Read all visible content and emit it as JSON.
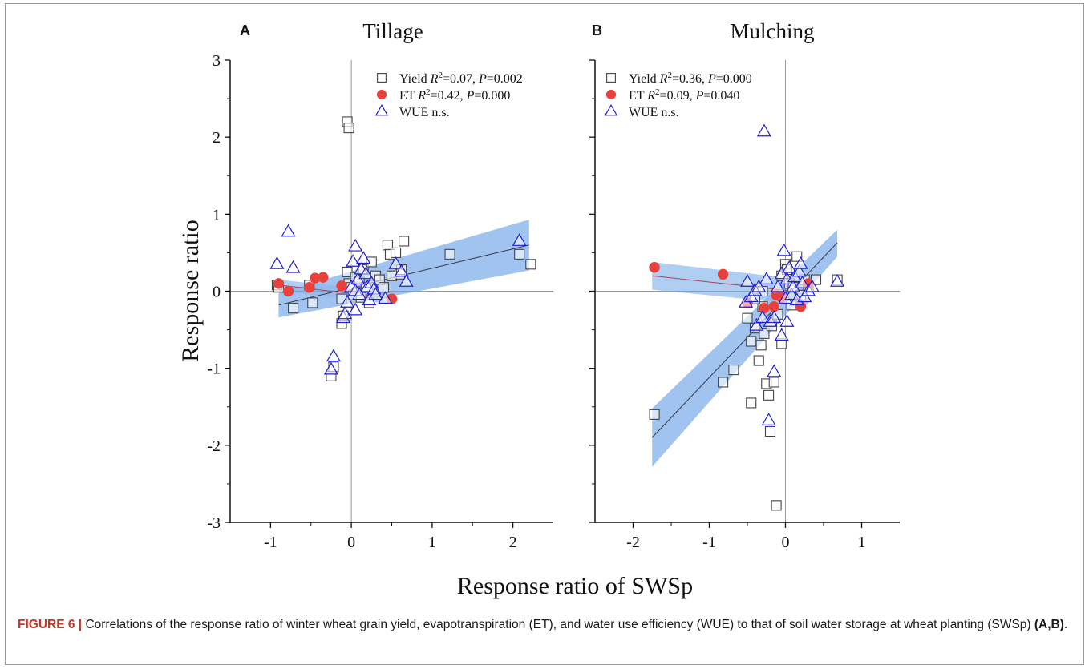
{
  "figure": {
    "caption_label": "FIGURE 6 |",
    "caption_text": " Correlations of the response ratio of winter wheat grain yield, evapotranspiration (ET), and water use efficiency (WUE) to that of soil water storage at wheat planting (SWSp) ",
    "caption_ref": "(A,B)",
    "caption_end": ".",
    "ylabel": "Response ratio",
    "xlabel": "Response ratio of SWSp",
    "colors": {
      "yield": "#444444",
      "et": "#e8403a",
      "wue": "#1f1fd0",
      "band": "#8fb8ec",
      "fit_yield": "#333344",
      "fit_et": "#b04060"
    }
  },
  "chart_data": [
    {
      "type": "scatter",
      "panel": "A",
      "title": "Tillage",
      "xlim": [
        -1.5,
        2.5
      ],
      "ylim": [
        -3,
        3
      ],
      "xticks": [
        -1,
        0,
        1,
        2
      ],
      "yticks": [
        -3,
        -2,
        -1,
        0,
        1,
        2,
        3
      ],
      "xtick_labels": [
        "-1",
        "0",
        "1",
        "2"
      ],
      "ytick_labels": [
        "-3",
        "-2",
        "-1",
        "0",
        "1",
        "2",
        "3"
      ],
      "legend": [
        {
          "series": "yield",
          "pre": "Yield ",
          "r2": "=0.07, ",
          "p": "=0.002"
        },
        {
          "series": "et",
          "pre": "ET ",
          "r2": "=0.42, ",
          "p": "=0.000"
        },
        {
          "series": "wue",
          "pre": "WUE n.s.",
          "r2": null,
          "p": null
        }
      ],
      "series": [
        {
          "name": "Yield",
          "key": "yield",
          "marker": "square",
          "points": [
            [
              -0.92,
              0.08
            ],
            [
              -0.9,
              0.05
            ],
            [
              -0.72,
              -0.22
            ],
            [
              -0.52,
              0.08
            ],
            [
              -0.48,
              -0.15
            ],
            [
              -0.12,
              -0.1
            ],
            [
              -0.12,
              -0.42
            ],
            [
              -0.1,
              -0.32
            ],
            [
              -0.25,
              -1.1
            ],
            [
              -0.22,
              -0.98
            ],
            [
              -0.05,
              2.2
            ],
            [
              -0.03,
              2.12
            ],
            [
              -0.05,
              0.25
            ],
            [
              -0.03,
              0.1
            ],
            [
              0.0,
              0.05
            ],
            [
              0.02,
              -0.05
            ],
            [
              0.05,
              0.18
            ],
            [
              0.1,
              0.12
            ],
            [
              0.12,
              -0.08
            ],
            [
              0.15,
              0.28
            ],
            [
              0.18,
              0.05
            ],
            [
              0.22,
              -0.15
            ],
            [
              0.25,
              0.38
            ],
            [
              0.3,
              0.2
            ],
            [
              0.35,
              0.15
            ],
            [
              0.4,
              0.05
            ],
            [
              0.45,
              0.6
            ],
            [
              0.48,
              0.48
            ],
            [
              0.5,
              0.2
            ],
            [
              0.55,
              0.5
            ],
            [
              0.6,
              0.22
            ],
            [
              0.62,
              0.28
            ],
            [
              0.65,
              0.65
            ],
            [
              1.22,
              0.48
            ],
            [
              2.08,
              0.48
            ],
            [
              2.22,
              0.35
            ]
          ]
        },
        {
          "name": "ET",
          "key": "et",
          "marker": "circle",
          "points": [
            [
              -0.9,
              0.1
            ],
            [
              -0.78,
              0.0
            ],
            [
              -0.52,
              0.05
            ],
            [
              -0.45,
              0.17
            ],
            [
              -0.35,
              0.18
            ],
            [
              -0.12,
              0.07
            ],
            [
              0.5,
              -0.1
            ]
          ]
        },
        {
          "name": "WUE",
          "key": "wue",
          "marker": "triangle",
          "points": [
            [
              -0.92,
              0.35
            ],
            [
              -0.78,
              0.77
            ],
            [
              -0.72,
              0.3
            ],
            [
              -0.22,
              -0.85
            ],
            [
              -0.25,
              -1.02
            ],
            [
              -0.1,
              -0.35
            ],
            [
              -0.08,
              -0.3
            ],
            [
              0.0,
              0.05
            ],
            [
              0.02,
              0.38
            ],
            [
              0.05,
              0.58
            ],
            [
              0.05,
              0.0
            ],
            [
              0.08,
              0.15
            ],
            [
              0.1,
              -0.05
            ],
            [
              0.12,
              0.28
            ],
            [
              0.15,
              0.42
            ],
            [
              0.18,
              0.22
            ],
            [
              0.2,
              0.05
            ],
            [
              0.22,
              -0.12
            ],
            [
              0.25,
              0.1
            ],
            [
              0.28,
              0.02
            ],
            [
              0.3,
              -0.05
            ],
            [
              0.42,
              -0.1
            ],
            [
              0.55,
              0.35
            ],
            [
              0.62,
              0.25
            ],
            [
              -0.05,
              -0.15
            ],
            [
              0.05,
              -0.25
            ],
            [
              2.08,
              0.65
            ],
            [
              0.68,
              0.12
            ]
          ]
        }
      ],
      "fits": [
        {
          "key": "yield",
          "x": [
            -0.9,
            2.2
          ],
          "y": [
            -0.18,
            0.6
          ],
          "band_upper": [
            -0.02,
            0.93
          ],
          "band_lower": [
            -0.34,
            0.27
          ]
        },
        {
          "key": "et",
          "x": [
            -0.9,
            0.5
          ],
          "y": [
            0.08,
            -0.09
          ],
          "band_upper": [
            0.15,
            -0.01
          ],
          "band_lower": [
            0.01,
            -0.17
          ]
        }
      ]
    },
    {
      "type": "scatter",
      "panel": "B",
      "title": "Mulching",
      "xlim": [
        -2.5,
        1.5
      ],
      "ylim": [
        -3,
        3
      ],
      "xticks": [
        -2,
        -1,
        0,
        1
      ],
      "yticks": [
        -3,
        -2,
        -1,
        0,
        1,
        2,
        3
      ],
      "xtick_labels": [
        "-2",
        "-1",
        "0",
        "1"
      ],
      "ytick_labels": [
        "",
        "",
        "",
        "",
        "",
        "",
        ""
      ],
      "legend": [
        {
          "series": "yield",
          "pre": "Yield ",
          "r2": "=0.36, ",
          "p": "=0.000"
        },
        {
          "series": "et",
          "pre": "ET ",
          "r2": "=0.09, ",
          "p": "=0.040"
        },
        {
          "series": "wue",
          "pre": "WUE n.s.",
          "r2": null,
          "p": null
        }
      ],
      "series": [
        {
          "name": "Yield",
          "key": "yield",
          "marker": "square",
          "points": [
            [
              -1.72,
              -1.6
            ],
            [
              -0.82,
              -1.18
            ],
            [
              -0.68,
              -1.02
            ],
            [
              -0.5,
              -0.35
            ],
            [
              -0.45,
              -0.65
            ],
            [
              -0.45,
              -1.45
            ],
            [
              -0.4,
              -0.48
            ],
            [
              -0.35,
              -0.9
            ],
            [
              -0.32,
              -0.7
            ],
            [
              -0.3,
              -0.2
            ],
            [
              -0.28,
              -0.55
            ],
            [
              -0.25,
              -1.2
            ],
            [
              -0.22,
              -1.35
            ],
            [
              -0.2,
              -1.82
            ],
            [
              -0.15,
              -1.18
            ],
            [
              -0.12,
              -2.78
            ],
            [
              -0.18,
              -0.45
            ],
            [
              -0.1,
              -0.3
            ],
            [
              -0.05,
              0.2
            ],
            [
              -0.05,
              -0.68
            ],
            [
              0.0,
              0.35
            ],
            [
              0.02,
              0.28
            ],
            [
              0.05,
              0.1
            ],
            [
              0.08,
              -0.18
            ],
            [
              0.1,
              0.05
            ],
            [
              0.15,
              0.45
            ],
            [
              0.2,
              -0.05
            ],
            [
              0.25,
              0.15
            ],
            [
              0.3,
              0.05
            ],
            [
              0.4,
              0.15
            ],
            [
              0.68,
              0.15
            ],
            [
              -0.4,
              -0.1
            ],
            [
              -0.3,
              0.0
            ]
          ]
        },
        {
          "name": "ET",
          "key": "et",
          "marker": "circle",
          "points": [
            [
              -1.72,
              0.31
            ],
            [
              -0.82,
              0.22
            ],
            [
              -0.5,
              -0.15
            ],
            [
              -0.28,
              -0.22
            ],
            [
              -0.15,
              -0.2
            ],
            [
              -0.05,
              -0.08
            ],
            [
              0.2,
              -0.2
            ],
            [
              0.3,
              0.1
            ],
            [
              -0.12,
              -0.05
            ]
          ]
        },
        {
          "name": "WUE",
          "key": "wue",
          "marker": "triangle",
          "points": [
            [
              -0.28,
              2.07
            ],
            [
              -0.15,
              -1.05
            ],
            [
              -0.22,
              -1.68
            ],
            [
              -0.5,
              0.12
            ],
            [
              -0.52,
              -0.15
            ],
            [
              -0.45,
              -0.08
            ],
            [
              -0.4,
              0.0
            ],
            [
              -0.38,
              -0.45
            ],
            [
              -0.35,
              0.05
            ],
            [
              -0.3,
              -0.35
            ],
            [
              -0.25,
              0.15
            ],
            [
              -0.2,
              -0.4
            ],
            [
              -0.15,
              -0.35
            ],
            [
              -0.1,
              0.05
            ],
            [
              -0.05,
              0.22
            ],
            [
              -0.02,
              0.52
            ],
            [
              0.0,
              -0.1
            ],
            [
              0.02,
              0.15
            ],
            [
              0.05,
              0.3
            ],
            [
              0.08,
              -0.05
            ],
            [
              0.1,
              0.05
            ],
            [
              0.12,
              0.18
            ],
            [
              0.15,
              -0.12
            ],
            [
              0.18,
              0.25
            ],
            [
              0.2,
              0.35
            ],
            [
              0.22,
              0.1
            ],
            [
              0.25,
              -0.08
            ],
            [
              0.3,
              0.0
            ],
            [
              0.35,
              0.05
            ],
            [
              0.68,
              0.12
            ],
            [
              -0.05,
              -0.58
            ],
            [
              0.02,
              -0.4
            ]
          ]
        }
      ],
      "fits": [
        {
          "key": "yield",
          "x": [
            -1.75,
            0.68
          ],
          "y": [
            -1.9,
            0.63
          ],
          "band_upper": [
            -1.52,
            0.8
          ],
          "band_lower": [
            -2.28,
            0.45
          ]
        },
        {
          "key": "et",
          "x": [
            -1.75,
            0.3
          ],
          "y": [
            0.2,
            -0.02
          ],
          "band_upper": [
            0.38,
            0.14
          ],
          "band_lower": [
            0.02,
            -0.18
          ]
        }
      ]
    }
  ]
}
